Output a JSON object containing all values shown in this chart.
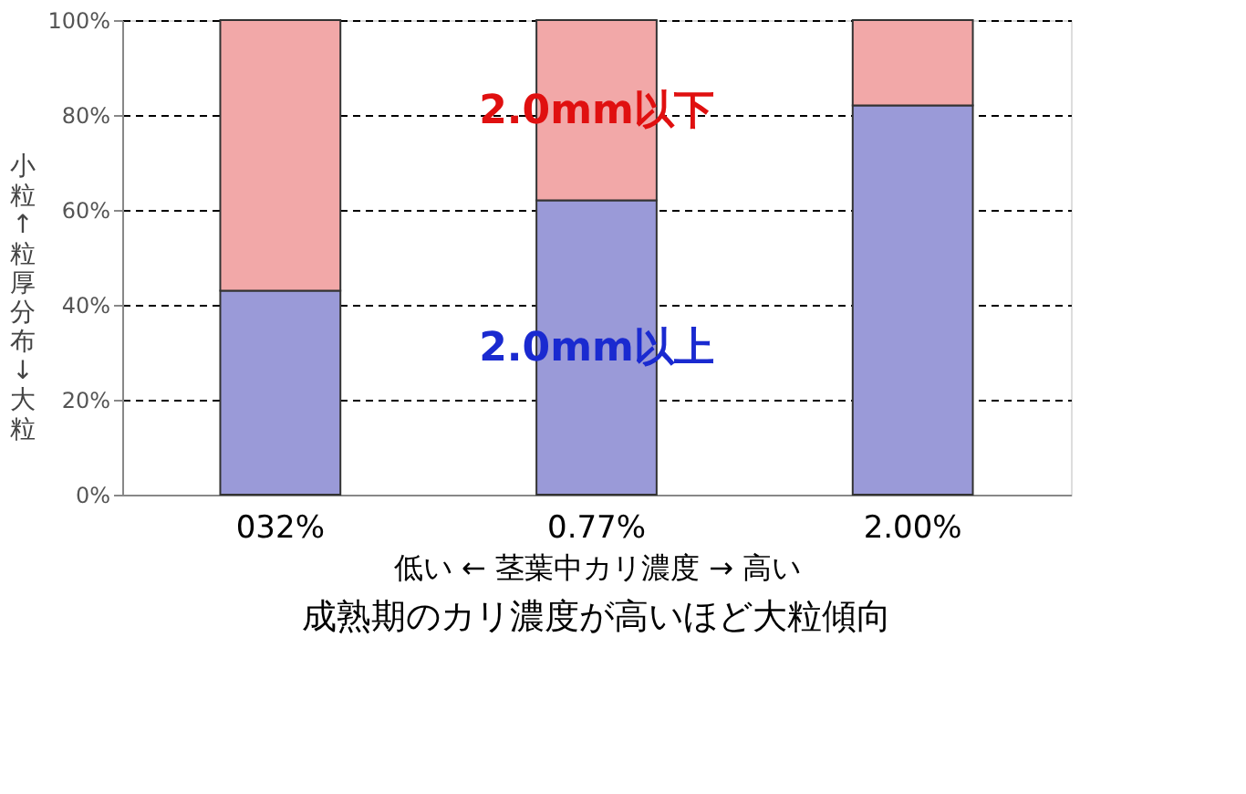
{
  "chart_data": {
    "type": "bar",
    "stacked": true,
    "categories": [
      "032%",
      "0.77%",
      "2.00%"
    ],
    "series": [
      {
        "name": "2.0mm以上",
        "color": "#9a9ad8",
        "values": [
          43,
          62,
          82
        ]
      },
      {
        "name": "2.0mm以下",
        "color": "#f2a8a8",
        "values": [
          57,
          38,
          18
        ]
      }
    ],
    "ylim": [
      0,
      100
    ],
    "yticks": [
      {
        "value": 0,
        "label": "0%"
      },
      {
        "value": 20,
        "label": "20%"
      },
      {
        "value": 40,
        "label": "40%"
      },
      {
        "value": 60,
        "label": "60%"
      },
      {
        "value": 80,
        "label": "80%"
      },
      {
        "value": 100,
        "label": "100%"
      }
    ],
    "grid": "y",
    "line_style": "dashed",
    "ylabel": "小粒↑粒厚分布↓大粒",
    "xlabel": "低い ←  茎葉中カリ濃度  →  高い",
    "annotations": [
      "成熟期のカリ濃度が高いほど大粒傾向"
    ]
  }
}
